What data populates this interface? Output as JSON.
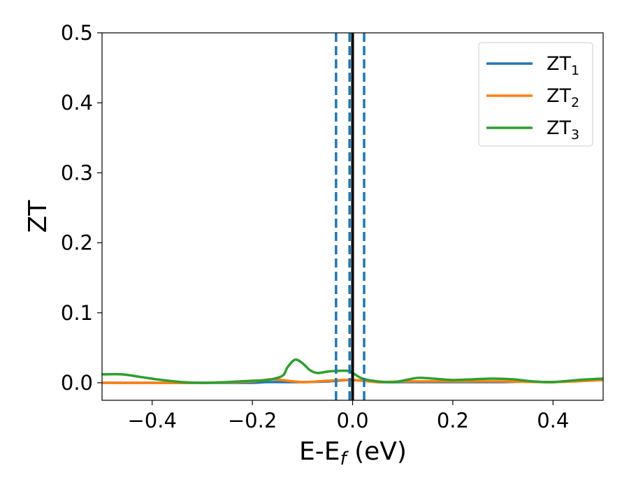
{
  "chart_data": {
    "type": "line",
    "xlabel": "E-E",
    "xlabel_sub": "f",
    "xlabel_unit": " (eV)",
    "ylabel": "ZT",
    "xlim": [
      -0.5,
      0.5
    ],
    "ylim": [
      -0.025,
      0.5
    ],
    "x_ticks": [
      -0.4,
      -0.2,
      0.0,
      0.2,
      0.4
    ],
    "x_tick_labels": [
      "−0.4",
      "−0.2",
      "0.0",
      "0.2",
      "0.4"
    ],
    "y_ticks": [
      0.0,
      0.1,
      0.2,
      0.3,
      0.4,
      0.5
    ],
    "y_tick_labels": [
      "0.0",
      "0.1",
      "0.2",
      "0.3",
      "0.4",
      "0.5"
    ],
    "grid": false,
    "legend_position": "top-right",
    "vlines": [
      {
        "x": 0.0,
        "style": "solid",
        "color": "#000000"
      },
      {
        "x": -0.033,
        "style": "dashed",
        "color": "#1f77b4"
      },
      {
        "x": -0.006,
        "style": "dashed",
        "color": "#1f77b4"
      },
      {
        "x": 0.023,
        "style": "dashed",
        "color": "#1f77b4"
      }
    ],
    "series": [
      {
        "name": "ZT",
        "subscript": "1",
        "color": "#1f77b4",
        "x": [
          -0.5,
          -0.4,
          -0.3,
          -0.2,
          -0.17,
          -0.1,
          -0.05,
          0.0,
          0.05,
          0.1,
          0.2,
          0.3,
          0.35,
          0.4,
          0.5
        ],
        "y": [
          0.0,
          0.0,
          0.0,
          0.0,
          0.001,
          0.001,
          0.002,
          0.004,
          0.001,
          0.001,
          0.001,
          0.001,
          0.002,
          0.001,
          0.005
        ]
      },
      {
        "name": "ZT",
        "subscript": "2",
        "color": "#ff7f0e",
        "x": [
          -0.5,
          -0.4,
          -0.3,
          -0.2,
          -0.16,
          -0.1,
          -0.05,
          0.0,
          0.05,
          0.1,
          0.2,
          0.3,
          0.4,
          0.5
        ],
        "y": [
          0.0,
          0.0,
          0.0,
          0.002,
          0.005,
          0.001,
          0.003,
          0.004,
          0.001,
          0.002,
          0.002,
          0.002,
          0.001,
          0.004
        ]
      },
      {
        "name": "ZT",
        "subscript": "3",
        "color": "#2ca02c",
        "x": [
          -0.5,
          -0.46,
          -0.42,
          -0.38,
          -0.34,
          -0.3,
          -0.25,
          -0.2,
          -0.17,
          -0.14,
          -0.13,
          -0.115,
          -0.1,
          -0.085,
          -0.07,
          -0.05,
          -0.03,
          -0.01,
          0.0,
          0.02,
          0.05,
          0.08,
          0.1,
          0.13,
          0.16,
          0.2,
          0.24,
          0.28,
          0.32,
          0.36,
          0.4,
          0.45,
          0.5
        ],
        "y": [
          0.012,
          0.012,
          0.008,
          0.004,
          0.001,
          0.0,
          0.001,
          0.003,
          0.004,
          0.01,
          0.022,
          0.033,
          0.028,
          0.018,
          0.014,
          0.016,
          0.017,
          0.017,
          0.014,
          0.006,
          0.002,
          0.001,
          0.003,
          0.007,
          0.006,
          0.004,
          0.005,
          0.006,
          0.005,
          0.002,
          0.001,
          0.004,
          0.006
        ]
      }
    ]
  }
}
